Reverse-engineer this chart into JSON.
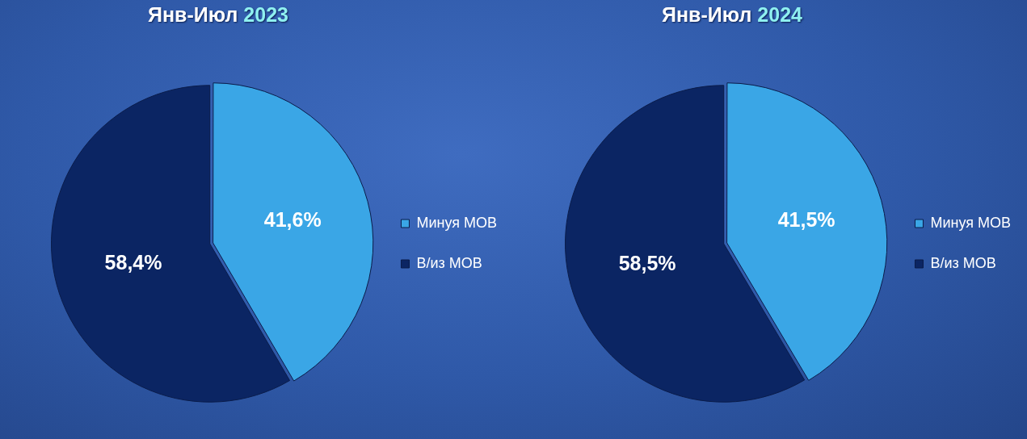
{
  "chart_data": [
    {
      "type": "pie",
      "title": "Янв-Июл 2023",
      "categories": [
        "Минуя МОВ",
        "В/из МОВ"
      ],
      "values": [
        41.6,
        58.4
      ],
      "colors": [
        "#3aa6e6",
        "#0b2563"
      ],
      "value_labels": [
        "41,6%",
        "58,4%"
      ],
      "legend": "right"
    },
    {
      "type": "pie",
      "title": "Янв-Июл 2024",
      "categories": [
        "Минуя МОВ",
        "В/из МОВ"
      ],
      "values": [
        41.5,
        58.5
      ],
      "colors": [
        "#3aa6e6",
        "#0b2563"
      ],
      "value_labels": [
        "41,5%",
        "58,5%"
      ],
      "legend": "right"
    }
  ]
}
